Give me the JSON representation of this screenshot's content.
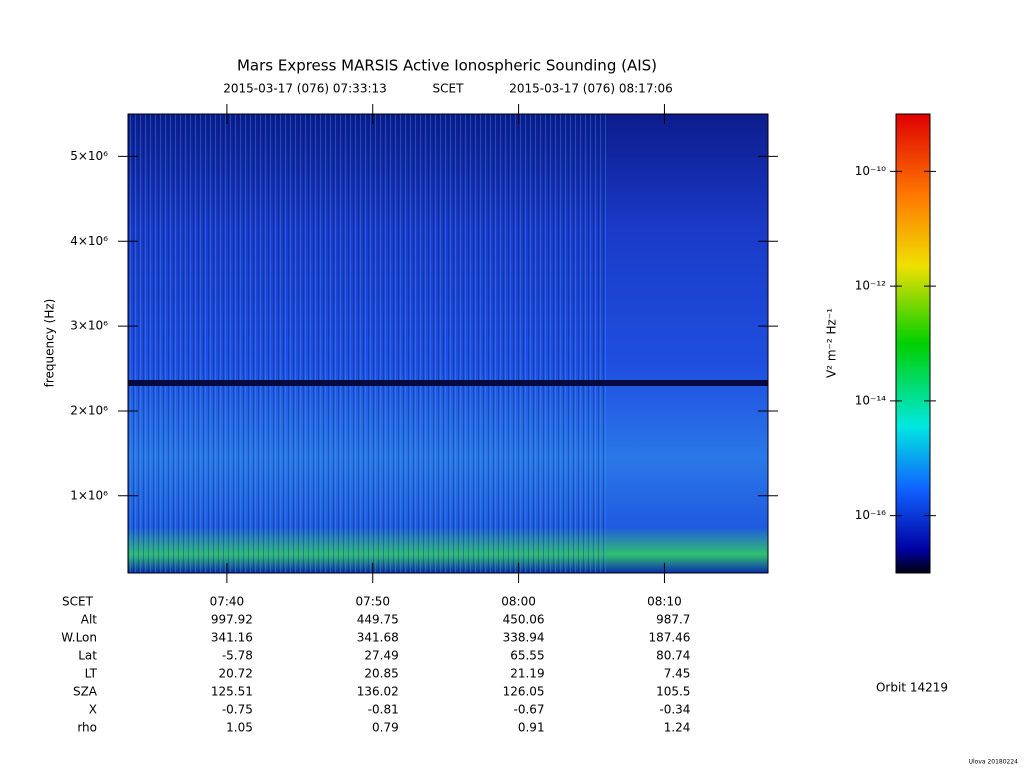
{
  "chart_data": {
    "type": "spectrogram",
    "title": "Mars Express MARSIS Active Ionospheric Sounding (AIS)",
    "time_start": "2015-03-17 (076) 07:33:13",
    "time_label": "SCET",
    "time_end": "2015-03-17 (076) 08:17:06",
    "y_label": "frequency (Hz)",
    "ylim": [
      90000,
      5500000
    ],
    "yticks": [
      {
        "value": 1000000,
        "label": "1×10⁶"
      },
      {
        "value": 2000000,
        "label": "2×10⁶"
      },
      {
        "value": 3000000,
        "label": "3×10⁶"
      },
      {
        "value": 4000000,
        "label": "4×10⁶"
      },
      {
        "value": 5000000,
        "label": "5×10⁶"
      }
    ],
    "xlim": [
      453.22,
      497.1
    ],
    "xticks": [
      {
        "value": 460,
        "label": "07:40"
      },
      {
        "value": 470,
        "label": "07:50"
      },
      {
        "value": 480,
        "label": "08:00"
      },
      {
        "value": 490,
        "label": "08:10"
      }
    ],
    "colorbar_label": "V² m⁻² Hz⁻¹",
    "clim": [
      1e-17,
      1e-09
    ],
    "clog": true,
    "cticks": [
      {
        "value": 1e-10,
        "label": "10⁻¹⁰"
      },
      {
        "value": 1e-12,
        "label": "10⁻¹²"
      },
      {
        "value": 1e-14,
        "label": "10⁻¹⁴"
      },
      {
        "value": 1e-16,
        "label": "10⁻¹⁶"
      }
    ],
    "ephemeris_header": "SCET",
    "ephemeris": [
      {
        "name": "Alt",
        "values": [
          997.92,
          449.75,
          450.06,
          987.7
        ]
      },
      {
        "name": "W.Lon",
        "values": [
          341.16,
          341.68,
          338.94,
          187.46
        ]
      },
      {
        "name": "Lat",
        "values": [
          -5.78,
          27.49,
          65.55,
          80.74
        ]
      },
      {
        "name": "LT",
        "values": [
          20.72,
          20.85,
          21.19,
          7.45
        ]
      },
      {
        "name": "SZA",
        "values": [
          125.51,
          136.02,
          126.05,
          105.5
        ]
      },
      {
        "name": "X",
        "values": [
          -0.75,
          -0.81,
          -0.67,
          -0.34
        ]
      },
      {
        "name": "rho",
        "values": [
          1.05,
          0.79,
          0.91,
          1.24
        ]
      }
    ],
    "orbit": "Orbit 14219",
    "credit": "Ulova 20180224"
  }
}
